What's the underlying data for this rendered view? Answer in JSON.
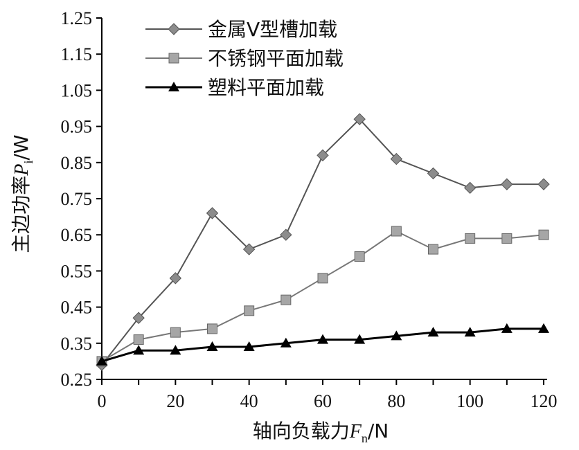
{
  "chart_data": {
    "type": "line",
    "xlabel": {
      "text": "轴向负载力",
      "symbol": "F",
      "subscript": "n",
      "unit": "/N"
    },
    "ylabel": {
      "text": "主边功率",
      "symbol": "P",
      "subscript": "i",
      "unit": "/W"
    },
    "xlim": [
      0,
      120
    ],
    "ylim": [
      0.25,
      1.25
    ],
    "x_ticks": [
      "0",
      "20",
      "40",
      "60",
      "80",
      "100",
      "120"
    ],
    "y_ticks": [
      "0.25",
      "0.35",
      "0.45",
      "0.55",
      "0.65",
      "0.75",
      "0.85",
      "0.95",
      "1.05",
      "1.15",
      "1.25"
    ],
    "grid": false,
    "legend_position": "top-center",
    "series": [
      {
        "name": "金属V型槽加载",
        "marker": "diamond",
        "color": "#555555",
        "marker_color": "#8c8c8c",
        "x": [
          0,
          10,
          20,
          30,
          40,
          50,
          60,
          70,
          80,
          90,
          100,
          110,
          120
        ],
        "y": [
          0.29,
          0.42,
          0.53,
          0.71,
          0.61,
          0.65,
          0.87,
          0.97,
          0.86,
          0.82,
          0.78,
          0.79,
          0.79
        ]
      },
      {
        "name": "不锈钢平面加载",
        "marker": "square",
        "color": "#777777",
        "marker_color": "#a6a6a6",
        "x": [
          0,
          10,
          20,
          30,
          40,
          50,
          60,
          70,
          80,
          90,
          100,
          110,
          120
        ],
        "y": [
          0.3,
          0.36,
          0.38,
          0.39,
          0.44,
          0.47,
          0.53,
          0.59,
          0.66,
          0.61,
          0.64,
          0.64,
          0.65
        ]
      },
      {
        "name": "塑料平面加载",
        "marker": "triangle",
        "color": "#000000",
        "marker_color": "#000000",
        "x": [
          0,
          10,
          20,
          30,
          40,
          50,
          60,
          70,
          80,
          90,
          100,
          110,
          120
        ],
        "y": [
          0.3,
          0.33,
          0.33,
          0.34,
          0.34,
          0.35,
          0.36,
          0.36,
          0.37,
          0.38,
          0.38,
          0.39,
          0.39
        ]
      }
    ]
  }
}
